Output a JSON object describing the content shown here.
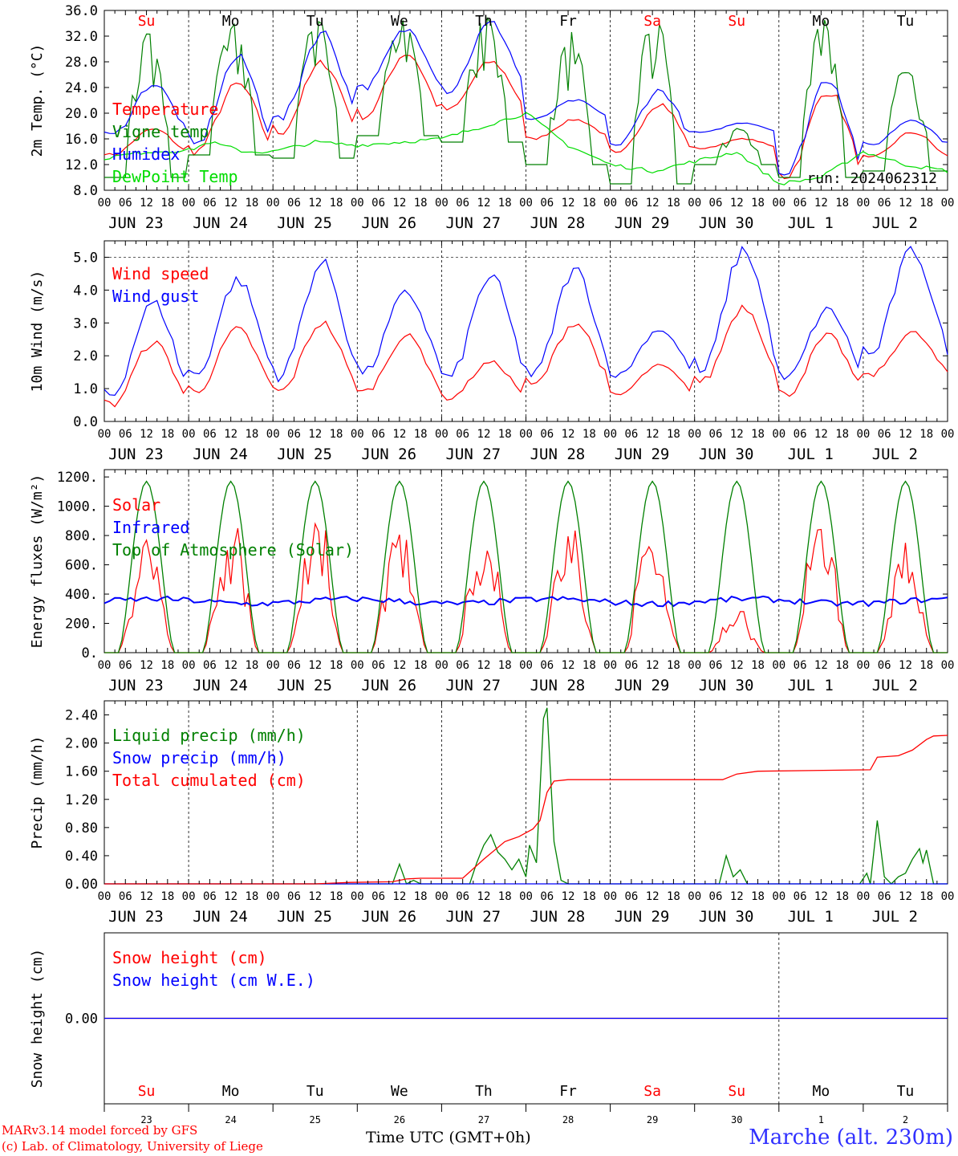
{
  "run_label": "run: 2024062312",
  "footer": {
    "credit_line1": "MARv3.14 model forced by GFS",
    "credit_line2": "(c) Lab. of Climatology, University of Liege",
    "xlabel": "Time UTC (GMT+0h)",
    "station": "Marche (alt. 230m)"
  },
  "colors": {
    "red": "#ff0000",
    "blue": "#0000ff",
    "green": "#008000",
    "lightgreen": "#00dd00",
    "purple": "#800080"
  },
  "chart_data": [
    {
      "type": "line",
      "ylabel": "2m Temp. (°C)",
      "yticks": [
        "36.0",
        "32.0",
        "28.0",
        "24.0",
        "20.0",
        "16.0",
        "12.0",
        "8.0"
      ],
      "ylim": [
        8,
        36
      ],
      "x_hours": [
        0,
        240
      ],
      "date_labels": [
        "JUN 23",
        "JUN 24",
        "JUN 25",
        "JUN 26",
        "JUN 27",
        "JUN 28",
        "JUN 29",
        "JUN 30",
        "JUL  1",
        "JUL  2"
      ],
      "day_names": [
        "Su",
        "Mo",
        "Tu",
        "We",
        "Th",
        "Fr",
        "Sa",
        "Su",
        "Mo",
        "Tu"
      ],
      "weekend_days": [
        0,
        6,
        7
      ],
      "series": [
        {
          "name": "Temperature",
          "color": "red",
          "kind": "diurnal",
          "min": [
            13.5,
            14,
            17,
            19.5,
            20.5,
            16,
            13.5,
            14.5,
            10.2,
            13
          ],
          "max": [
            17.5,
            24.5,
            27.8,
            29.3,
            28,
            19,
            21.5,
            16,
            23.5,
            17
          ],
          "end": 12
        },
        {
          "name": "Vigne temp",
          "color": "green",
          "kind": "spiky",
          "min": [
            10,
            13.5,
            13,
            16.5,
            15.5,
            12,
            9,
            12,
            10,
            11
          ],
          "max": [
            33,
            35,
            35,
            35,
            35,
            33,
            36,
            18,
            35,
            28
          ],
          "end": 9
        },
        {
          "name": "Humidex",
          "color": "blue",
          "kind": "diurnal",
          "min": [
            16.5,
            15,
            19,
            24,
            23.5,
            19,
            15,
            17,
            10.5,
            15
          ],
          "max": [
            24.5,
            28.6,
            32.5,
            33,
            34,
            22,
            23.5,
            18.5,
            25.5,
            19
          ],
          "end": 14
        },
        {
          "name": "DewPoint Temp",
          "color": "lightgreen",
          "kind": "smooth",
          "points": [
            [
              0,
              13
            ],
            [
              12,
              14
            ],
            [
              24,
              14.2
            ],
            [
              30,
              15.5
            ],
            [
              40,
              14
            ],
            [
              48,
              14
            ],
            [
              60,
              15.5
            ],
            [
              72,
              15
            ],
            [
              84,
              15.5
            ],
            [
              96,
              16
            ],
            [
              108,
              18
            ],
            [
              120,
              20
            ],
            [
              132,
              15
            ],
            [
              144,
              12
            ],
            [
              156,
              11
            ],
            [
              168,
              12.5
            ],
            [
              180,
              14
            ],
            [
              192,
              9
            ],
            [
              204,
              10
            ],
            [
              216,
              14
            ],
            [
              228,
              12
            ],
            [
              240,
              11
            ]
          ]
        }
      ]
    },
    {
      "type": "line",
      "ylabel": "10m Wind (m/s)",
      "yticks": [
        "5.0",
        "4.0",
        "3.0",
        "2.0",
        "1.0",
        "0.0"
      ],
      "ylim": [
        0,
        5.5
      ],
      "x_hours": [
        0,
        240
      ],
      "date_labels": [
        "JUN 23",
        "JUN 24",
        "JUN 25",
        "JUN 26",
        "JUN 27",
        "JUN 28",
        "JUN 29",
        "JUN 30",
        "JUL  1",
        "JUL  2"
      ],
      "series": [
        {
          "name": "Wind speed",
          "color": "red",
          "kind": "diurnal",
          "min": [
            0.5,
            0.9,
            0.9,
            0.9,
            0.7,
            1.1,
            0.8,
            1.2,
            0.8,
            1.4
          ],
          "max": [
            2.4,
            2.8,
            3.0,
            2.6,
            1.8,
            3.0,
            1.7,
            3.5,
            2.6,
            2.7
          ],
          "end": 2.0
        },
        {
          "name": "Wind gust",
          "color": "blue",
          "kind": "diurnal",
          "min": [
            0.8,
            1.4,
            1.4,
            1.5,
            1.3,
            1.4,
            1.4,
            1.5,
            1.3,
            2.0
          ],
          "max": [
            3.6,
            4.3,
            4.8,
            3.9,
            4.4,
            4.6,
            2.8,
            5.2,
            3.4,
            5.2
          ],
          "end": 2.7
        }
      ]
    },
    {
      "type": "line",
      "ylabel": "Energy fluxes (W/m²)",
      "yticks": [
        "1200.",
        "1000.",
        "800.",
        "600.",
        "400.",
        "200.",
        "0."
      ],
      "ylim": [
        0,
        1250
      ],
      "x_hours": [
        0,
        240
      ],
      "date_labels": [
        "JUN 23",
        "JUN 24",
        "JUN 25",
        "JUN 26",
        "JUN 27",
        "JUN 28",
        "JUN 29",
        "JUN 30",
        "JUL  1",
        "JUL  2"
      ],
      "series": [
        {
          "name": "Solar",
          "color": "red",
          "kind": "solar",
          "peaks": [
            780,
            850,
            880,
            880,
            840,
            860,
            890,
            280,
            880,
            750
          ]
        },
        {
          "name": "Infrared",
          "color": "blue",
          "kind": "flat",
          "base": 350,
          "amp": 40
        },
        {
          "name": "Top of Atmosphere (Solar)",
          "color": "green",
          "kind": "solar",
          "peaks": [
            1170,
            1170,
            1170,
            1170,
            1170,
            1170,
            1170,
            1170,
            1170,
            1170
          ]
        }
      ]
    },
    {
      "type": "line",
      "ylabel": "Precip (mm/h)",
      "yticks": [
        "2.40",
        "2.00",
        "1.60",
        "1.20",
        "0.80",
        "0.40",
        "0.00"
      ],
      "ylim": [
        0,
        2.6
      ],
      "x_hours": [
        0,
        240
      ],
      "date_labels": [
        "JUN 23",
        "JUN 24",
        "JUN 25",
        "JUN 26",
        "JUN 27",
        "JUN 28",
        "JUN 29",
        "JUN 30",
        "JUL  1",
        "JUL  2"
      ],
      "series": [
        {
          "name": "Liquid precip (mm/h)",
          "color": "green",
          "kind": "points",
          "points": [
            [
              0,
              0
            ],
            [
              82,
              0
            ],
            [
              84,
              0.28
            ],
            [
              86,
              0
            ],
            [
              88,
              0.05
            ],
            [
              90,
              0
            ],
            [
              104,
              0
            ],
            [
              106,
              0.3
            ],
            [
              108,
              0.55
            ],
            [
              110,
              0.7
            ],
            [
              112,
              0.45
            ],
            [
              114,
              0.35
            ],
            [
              116,
              0.2
            ],
            [
              118,
              0.35
            ],
            [
              120,
              0.1
            ],
            [
              121,
              0.55
            ],
            [
              123,
              0.3
            ],
            [
              125,
              2.35
            ],
            [
              126,
              2.5
            ],
            [
              128,
              0.6
            ],
            [
              130,
              0.05
            ],
            [
              132,
              0
            ],
            [
              175,
              0
            ],
            [
              177,
              0.4
            ],
            [
              179,
              0.1
            ],
            [
              181,
              0.2
            ],
            [
              183,
              0
            ],
            [
              215,
              0
            ],
            [
              217,
              0.15
            ],
            [
              218,
              0
            ],
            [
              220,
              0.9
            ],
            [
              222,
              0.1
            ],
            [
              224,
              0
            ],
            [
              226,
              0.1
            ],
            [
              228,
              0.15
            ],
            [
              230,
              0.35
            ],
            [
              232,
              0.5
            ],
            [
              233,
              0.3
            ],
            [
              234,
              0.48
            ],
            [
              236,
              0
            ],
            [
              240,
              0
            ]
          ]
        },
        {
          "name": "Snow precip (mm/h)",
          "color": "blue",
          "kind": "points",
          "points": [
            [
              0,
              0
            ],
            [
              240,
              0
            ]
          ]
        },
        {
          "name": "Total cumulated (cm)",
          "color": "red",
          "kind": "points",
          "points": [
            [
              0,
              0
            ],
            [
              60,
              0
            ],
            [
              70,
              0.02
            ],
            [
              82,
              0.03
            ],
            [
              86,
              0.07
            ],
            [
              90,
              0.08
            ],
            [
              102,
              0.08
            ],
            [
              108,
              0.35
            ],
            [
              114,
              0.6
            ],
            [
              118,
              0.67
            ],
            [
              122,
              0.78
            ],
            [
              124,
              0.9
            ],
            [
              126,
              1.3
            ],
            [
              128,
              1.46
            ],
            [
              132,
              1.48
            ],
            [
              176,
              1.48
            ],
            [
              180,
              1.56
            ],
            [
              186,
              1.6
            ],
            [
              218,
              1.62
            ],
            [
              220,
              1.8
            ],
            [
              226,
              1.82
            ],
            [
              230,
              1.9
            ],
            [
              234,
              2.05
            ],
            [
              236,
              2.1
            ],
            [
              240,
              2.11
            ]
          ]
        }
      ]
    },
    {
      "type": "line",
      "ylabel": "Snow height (cm)",
      "yticks": [
        "0.00"
      ],
      "ylim": [
        -1,
        1
      ],
      "x_hours": [
        0,
        240
      ],
      "day_numbers": [
        "23",
        "24",
        "25",
        "26",
        "27",
        "28",
        "29",
        "30",
        "1",
        "2"
      ],
      "day_names": [
        "Su",
        "Mo",
        "Tu",
        "We",
        "Th",
        "Fr",
        "Sa",
        "Su",
        "Mo",
        "Tu"
      ],
      "weekend_days": [
        0,
        6,
        7
      ],
      "series": [
        {
          "name": "Snow height (cm)",
          "color": "red",
          "kind": "points",
          "points": [
            [
              0,
              0
            ],
            [
              240,
              0
            ]
          ]
        },
        {
          "name": "Snow height (cm W.E.)",
          "color": "blue",
          "kind": "points",
          "points": [
            [
              0,
              0
            ],
            [
              240,
              0
            ]
          ]
        }
      ]
    }
  ]
}
